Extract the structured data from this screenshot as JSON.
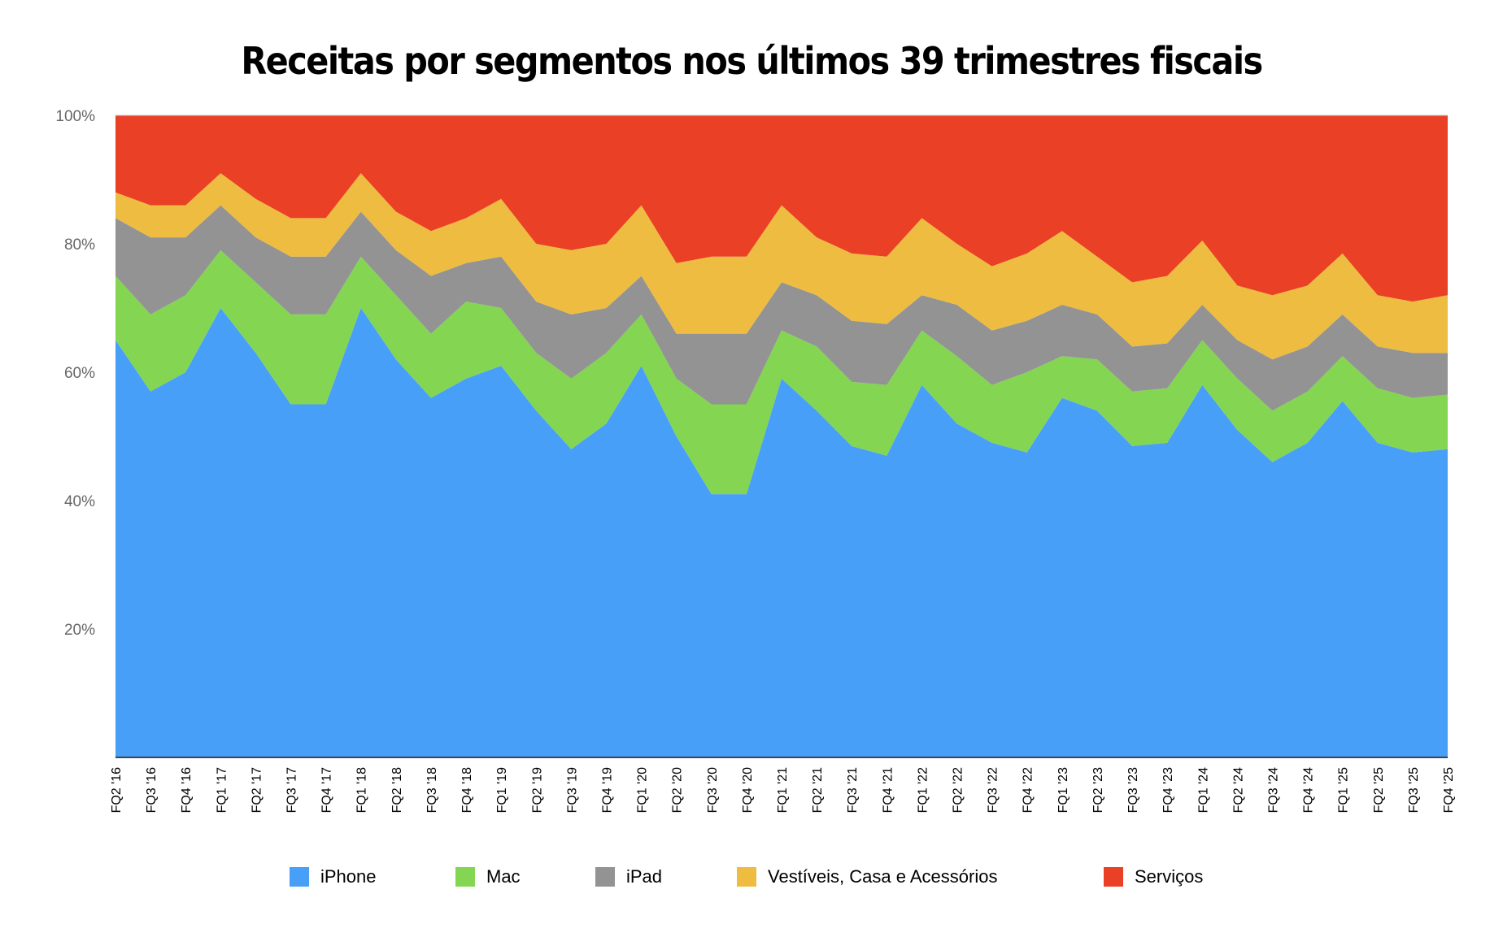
{
  "chart_data": {
    "type": "area",
    "stacked": true,
    "normalized": true,
    "title": "Receitas por segmentos nos últimos 39 trimestres fiscais",
    "ylim": [
      0,
      100
    ],
    "yticks": [
      "20%",
      "40%",
      "60%",
      "80%",
      "100%"
    ],
    "grid": false,
    "legend_position": "bottom",
    "categories": [
      "FQ2 '16",
      "FQ3 '16",
      "FQ4 '16",
      "FQ1 '17",
      "FQ2 '17",
      "FQ3 '17",
      "FQ4 '17",
      "FQ1 '18",
      "FQ2 '18",
      "FQ3 '18",
      "FQ4 '18",
      "FQ1 '19",
      "FQ2 '19",
      "FQ3 '19",
      "FQ4 '19",
      "FQ1 '20",
      "FQ2 '20",
      "FQ3 '20",
      "FQ4 '20",
      "FQ1 '21",
      "FQ2 '21",
      "FQ3 '21",
      "FQ4 '21",
      "FQ1 '22",
      "FQ2 '22",
      "FQ3 '22",
      "FQ4 '22",
      "FQ1 '23",
      "FQ2 '23",
      "FQ3 '23",
      "FQ4 '23",
      "FQ1 '24",
      "FQ2 '24",
      "FQ3 '24",
      "FQ4 '24",
      "FQ1 '25",
      "FQ2 '25",
      "FQ3 '25",
      "FQ4 '25"
    ],
    "series": [
      {
        "name": "iPhone",
        "color": "#489ff8",
        "values": [
          65,
          57,
          60,
          70,
          63,
          55,
          55,
          70,
          62,
          56,
          59,
          61,
          54,
          48,
          52,
          61,
          50,
          41,
          41,
          59,
          54,
          48.5,
          47,
          58,
          52,
          49,
          47.5,
          56,
          54,
          48.5,
          49,
          58,
          51,
          46,
          49,
          55.5,
          49,
          47.5,
          48
        ]
      },
      {
        "name": "Mac",
        "color": "#83d552",
        "values": [
          10,
          12,
          12,
          9,
          11,
          14,
          14,
          8,
          10,
          10,
          12,
          9,
          9,
          11,
          11,
          8,
          9,
          14,
          14,
          7.5,
          10,
          10,
          11,
          8.5,
          10.5,
          9,
          12.5,
          6.5,
          8,
          8.5,
          8.5,
          7,
          8,
          8,
          8,
          7,
          8.5,
          8.5,
          8.5
        ]
      },
      {
        "name": "iPad",
        "color": "#939393",
        "values": [
          9,
          12,
          9,
          7,
          7,
          9,
          9,
          7,
          7,
          9,
          6,
          8,
          8,
          10,
          7,
          6,
          7,
          11,
          11,
          7.5,
          8,
          9.5,
          9.5,
          5.5,
          8,
          8.5,
          8,
          8,
          7,
          7,
          7,
          5.5,
          6,
          8,
          7,
          6.5,
          6.5,
          7,
          6.5
        ]
      },
      {
        "name": "Vestíveis, Casa e Acessórios",
        "color": "#eebc40",
        "values": [
          4,
          5,
          5,
          5,
          6,
          6,
          6,
          6,
          6,
          7,
          7,
          9,
          9,
          10,
          10,
          11,
          11,
          12,
          12,
          12,
          9,
          10.5,
          10.5,
          12,
          9.5,
          10,
          10.5,
          11.5,
          9,
          10,
          10.5,
          10,
          8.5,
          10,
          9.5,
          9.5,
          8,
          8,
          9
        ]
      },
      {
        "name": "Serviços",
        "color": "#ea4025",
        "values": [
          12,
          14,
          14,
          9,
          13,
          16,
          16,
          9,
          15,
          18,
          16,
          13,
          20,
          21,
          20,
          14,
          23,
          22,
          22,
          14,
          19,
          21.5,
          22,
          16,
          20,
          23.5,
          21.5,
          18,
          22,
          26,
          25,
          19.5,
          26.5,
          28,
          26.5,
          21.5,
          28,
          29,
          28
        ]
      }
    ]
  }
}
